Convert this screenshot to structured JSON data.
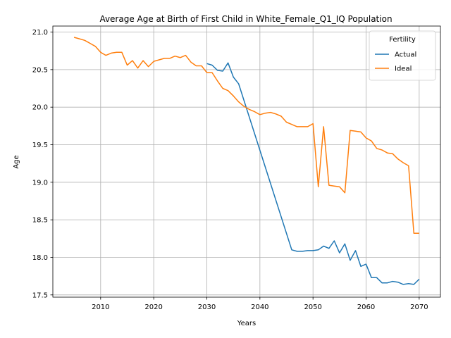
{
  "chart_data": {
    "type": "line",
    "title": "Average Age at Birth of First Child in White_Female_Q1_IQ Population",
    "xlabel": "Years",
    "ylabel": "Age",
    "xlim": [
      2001,
      2074
    ],
    "ylim": [
      17.47,
      21.08
    ],
    "xticks": [
      2010,
      2020,
      2030,
      2040,
      2050,
      2060,
      2070
    ],
    "yticks": [
      17.5,
      18.0,
      18.5,
      19.0,
      19.5,
      20.0,
      20.5,
      21.0
    ],
    "xtick_labels": [
      "2010",
      "2020",
      "2030",
      "2040",
      "2050",
      "2060",
      "2070"
    ],
    "ytick_labels": [
      "17.5",
      "18.0",
      "18.5",
      "19.0",
      "19.5",
      "20.0",
      "20.5",
      "21.0"
    ],
    "grid": true,
    "legend": {
      "title": "Fertility",
      "position": "upper right"
    },
    "series": [
      {
        "name": "Actual",
        "color": "#1f77b4",
        "x": [
          2030,
          2031,
          2032,
          2033,
          2034,
          2035,
          2036,
          2046,
          2047,
          2048,
          2049,
          2050,
          2051,
          2052,
          2053,
          2054,
          2055,
          2056,
          2057,
          2058,
          2059,
          2060,
          2061,
          2062,
          2063,
          2064,
          2065,
          2066,
          2067,
          2068,
          2069,
          2070
        ],
        "y": [
          20.58,
          20.56,
          20.49,
          20.48,
          20.59,
          20.4,
          20.31,
          18.1,
          18.08,
          18.08,
          18.09,
          18.09,
          18.1,
          18.15,
          18.12,
          18.22,
          18.06,
          18.18,
          17.96,
          18.09,
          17.88,
          17.91,
          17.73,
          17.73,
          17.66,
          17.66,
          17.68,
          17.67,
          17.64,
          17.65,
          17.64,
          17.71
        ]
      },
      {
        "name": "Ideal",
        "color": "#ff7f0e",
        "x": [
          2005,
          2006,
          2007,
          2008,
          2009,
          2010,
          2011,
          2012,
          2013,
          2014,
          2015,
          2016,
          2017,
          2018,
          2019,
          2020,
          2021,
          2022,
          2023,
          2024,
          2025,
          2026,
          2027,
          2028,
          2029,
          2030,
          2031,
          2032,
          2033,
          2034,
          2035,
          2036,
          2037,
          2038,
          2039,
          2040,
          2041,
          2042,
          2043,
          2044,
          2045,
          2046,
          2047,
          2048,
          2049,
          2050,
          2051,
          2052,
          2053,
          2054,
          2055,
          2056,
          2057,
          2058,
          2059,
          2060,
          2061,
          2062,
          2063,
          2064,
          2065,
          2066,
          2067,
          2068,
          2069,
          2070
        ],
        "y": [
          20.93,
          20.91,
          20.89,
          20.85,
          20.81,
          20.73,
          20.69,
          20.72,
          20.73,
          20.73,
          20.56,
          20.62,
          20.52,
          20.62,
          20.54,
          20.61,
          20.63,
          20.65,
          20.65,
          20.68,
          20.66,
          20.69,
          20.6,
          20.55,
          20.55,
          20.46,
          20.46,
          20.35,
          20.25,
          20.22,
          20.15,
          20.07,
          20.01,
          19.97,
          19.94,
          19.9,
          19.92,
          19.93,
          19.91,
          19.88,
          19.8,
          19.77,
          19.74,
          19.74,
          19.74,
          19.78,
          18.94,
          19.74,
          18.96,
          18.95,
          18.94,
          18.86,
          19.69,
          19.68,
          19.67,
          19.59,
          19.55,
          19.45,
          19.43,
          19.39,
          19.38,
          19.31,
          19.26,
          19.22,
          18.32,
          18.32
        ]
      }
    ]
  }
}
